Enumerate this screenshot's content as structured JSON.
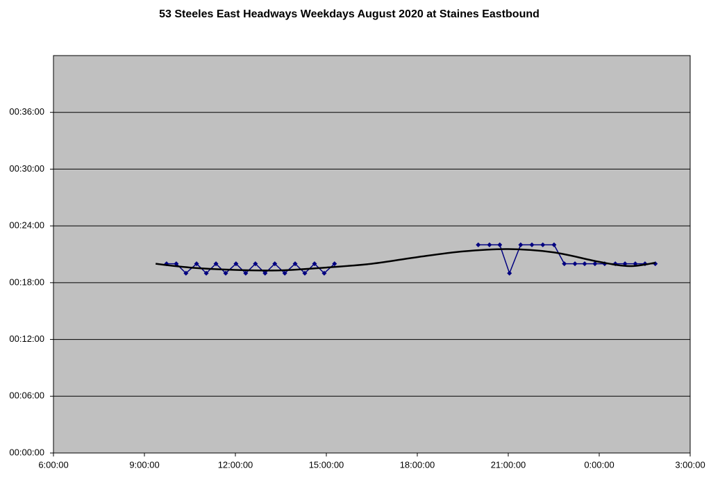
{
  "chart_data": {
    "type": "line",
    "title": "53 Steeles East Headways Weekdays August 2020 at Staines Eastbound",
    "plot_background": "#c0c0c0",
    "grid": true,
    "xlim": [
      6,
      27
    ],
    "xticks": [
      {
        "value": 6,
        "label": "6:00:00"
      },
      {
        "value": 9,
        "label": "9:00:00"
      },
      {
        "value": 12,
        "label": "12:00:00"
      },
      {
        "value": 15,
        "label": "15:00:00"
      },
      {
        "value": 18,
        "label": "18:00:00"
      },
      {
        "value": 21,
        "label": "21:00:00"
      },
      {
        "value": 24,
        "label": "0:00:00"
      },
      {
        "value": 27,
        "label": "3:00:00"
      }
    ],
    "ylim": [
      0,
      42
    ],
    "yticks": [
      {
        "value": 0,
        "label": "00:00:00"
      },
      {
        "value": 6,
        "label": "00:06:00"
      },
      {
        "value": 12,
        "label": "00:12:00"
      },
      {
        "value": 18,
        "label": "00:18:00"
      },
      {
        "value": 24,
        "label": "00:24:00"
      },
      {
        "value": 30,
        "label": "00:30:00"
      },
      {
        "value": 36,
        "label": "00:36:00"
      }
    ],
    "series": [
      {
        "color": "#000080",
        "marker": "diamond",
        "smooth": false,
        "x": [
          9.73,
          10.05,
          10.37,
          10.72,
          11.04,
          11.36,
          11.68,
          12.02,
          12.34,
          12.66,
          12.98,
          13.3,
          13.63,
          13.97,
          14.29,
          14.61,
          14.93,
          15.27,
          null,
          20.01,
          20.38,
          20.72,
          21.04,
          21.41,
          21.78,
          22.14,
          22.51,
          22.85,
          23.2,
          23.52,
          23.86,
          24.18,
          24.53,
          24.85,
          25.19,
          25.51,
          25.85
        ],
        "values": [
          20,
          20,
          19,
          20,
          19,
          20,
          19,
          20,
          19,
          20,
          19,
          20,
          19,
          20,
          19,
          20,
          19,
          20,
          null,
          22,
          22,
          22,
          19,
          22,
          22,
          22,
          22,
          20,
          20,
          20,
          20,
          20,
          20,
          20,
          20,
          20,
          20
        ]
      },
      {
        "color": "#000000",
        "marker": "none",
        "smooth": true,
        "x": [
          9.37,
          10.5,
          12,
          13.5,
          15,
          16.5,
          18,
          19.5,
          21,
          22.5,
          24,
          25,
          25.85
        ],
        "values": [
          20,
          19.6,
          19.35,
          19.3,
          19.6,
          20,
          20.7,
          21.3,
          21.55,
          21.2,
          20.2,
          19.75,
          20.1
        ]
      }
    ]
  }
}
